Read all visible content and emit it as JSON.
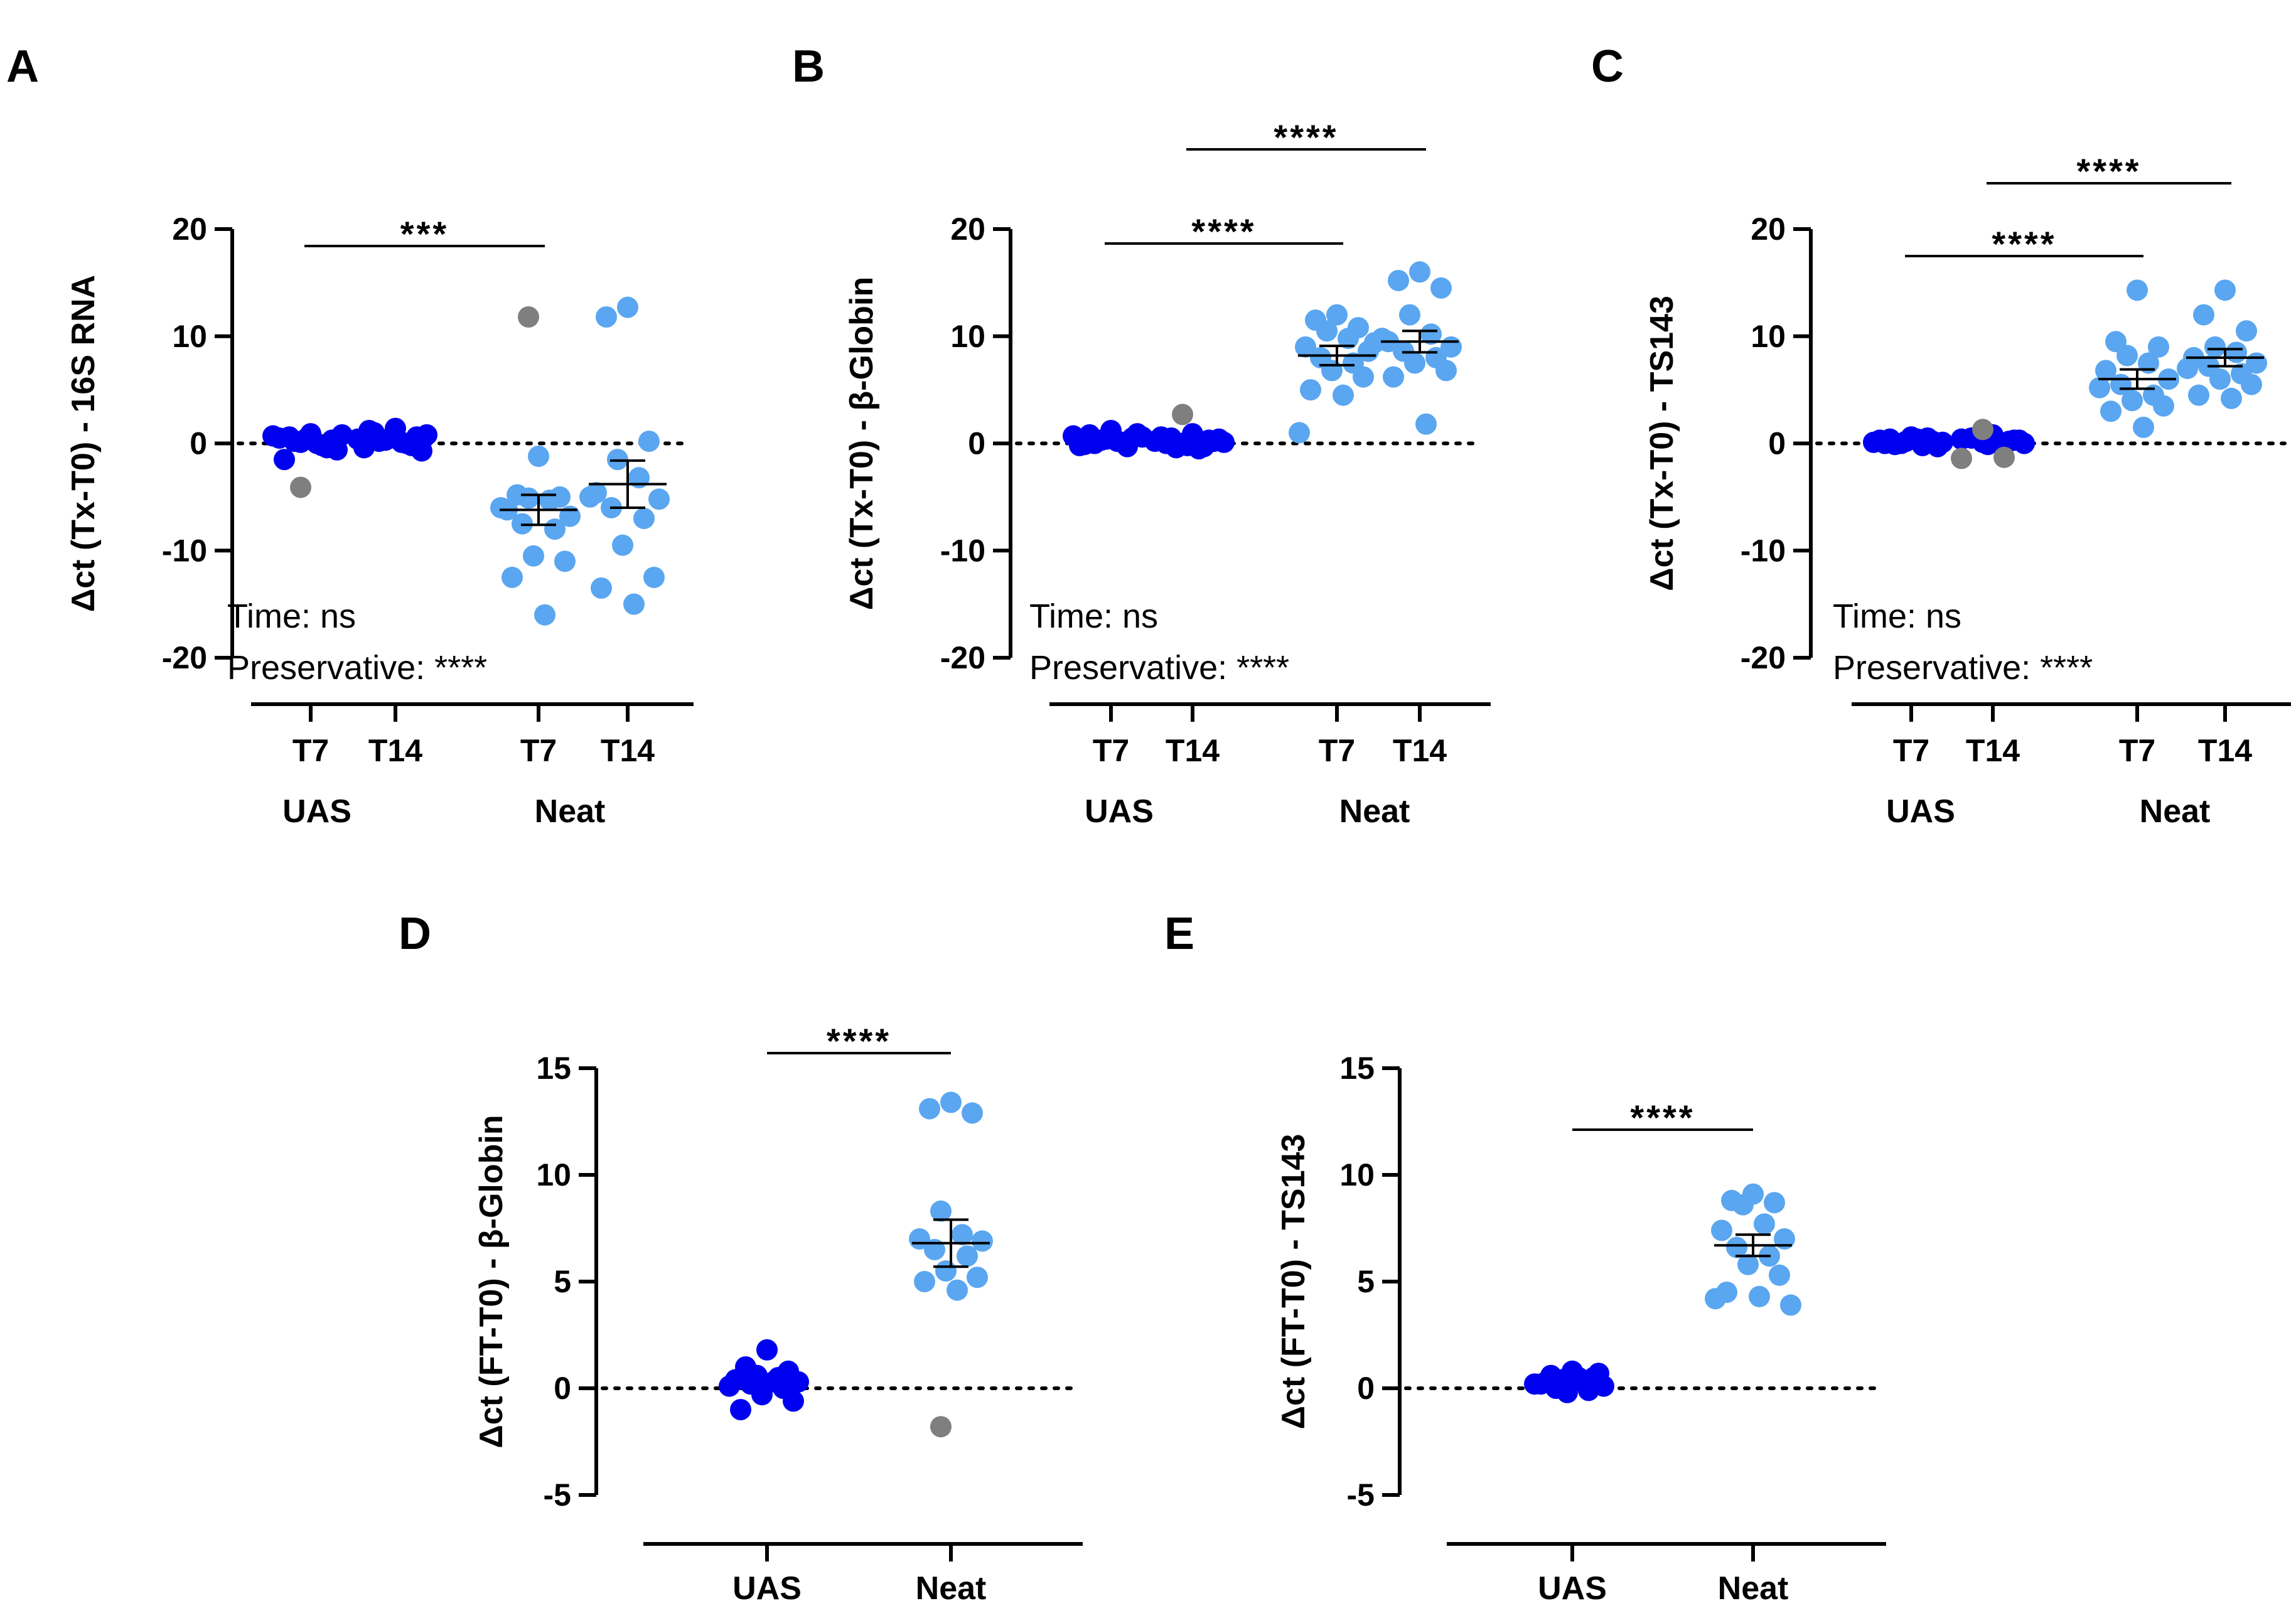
{
  "colors": {
    "uas": "#0000f0",
    "neat": "#5aa6f0",
    "outlier": "#7f7f7f",
    "axis": "#000000"
  },
  "chart_data": [
    {
      "id": "A",
      "panel_label": "A",
      "type": "scatter",
      "ylabel": "Δct (Tx-T0) - 16S RNA",
      "ylim": [
        -20,
        20
      ],
      "yticks": [
        {
          "value": 20,
          "label": "20"
        },
        {
          "value": 10,
          "label": "10"
        },
        {
          "value": 0,
          "label": "0"
        },
        {
          "value": -10,
          "label": "-10"
        },
        {
          "value": -20,
          "label": "-20"
        }
      ],
      "reference_line": 0,
      "groups": [
        {
          "name": "UAS",
          "categories": [
            "T7",
            "T14"
          ]
        },
        {
          "name": "Neat",
          "categories": [
            "T7",
            "T14"
          ]
        }
      ],
      "series": [
        {
          "group": "UAS",
          "category": "T7",
          "color_key": "uas",
          "mean": null,
          "error": null,
          "values": [
            0.9,
            0.6,
            0.3,
            0.1,
            -0.2,
            0.5,
            0.8,
            0.2,
            -0.4,
            0.4,
            -0.6,
            -1.5,
            0.0,
            0.7
          ],
          "outliers": [
            -4.1
          ]
        },
        {
          "group": "UAS",
          "category": "T14",
          "color_key": "uas",
          "mean": null,
          "error": null,
          "values": [
            1.4,
            1.0,
            0.6,
            0.3,
            0.0,
            -0.4,
            0.8,
            0.2,
            -0.2,
            0.5,
            -0.7,
            1.2,
            0.1,
            0.4
          ],
          "outliers": []
        },
        {
          "group": "Neat",
          "category": "T7",
          "color_key": "neat",
          "mean": -6.2,
          "error": 1.4,
          "values": [
            -1.2,
            -4.8,
            -5.0,
            -5.1,
            -5.3,
            -6.2,
            -6.8,
            -7.5,
            -8.0,
            -10.5,
            -11.0,
            -12.5,
            -16.0,
            -6.0
          ],
          "outliers": [
            11.8
          ]
        },
        {
          "group": "Neat",
          "category": "T14",
          "color_key": "neat",
          "mean": -3.8,
          "error": 2.2,
          "values": [
            12.7,
            11.8,
            0.2,
            -1.5,
            -3.2,
            -4.6,
            -5.2,
            -6.0,
            -7.0,
            -9.5,
            -12.5,
            -13.5,
            -15.0,
            -5.0
          ],
          "outliers": []
        }
      ],
      "significance": [
        {
          "from": "UAS T7",
          "to": "Neat T7",
          "label": "***"
        }
      ],
      "annotations": {
        "time": "Time: ns",
        "preservative": "Preservative: ****"
      }
    },
    {
      "id": "B",
      "panel_label": "B",
      "type": "scatter",
      "ylabel": "Δct (Tx-T0) - β-Globin",
      "ylim": [
        -20,
        20
      ],
      "yticks": [
        {
          "value": 20,
          "label": "20"
        },
        {
          "value": 10,
          "label": "10"
        },
        {
          "value": 0,
          "label": "0"
        },
        {
          "value": -10,
          "label": "-10"
        },
        {
          "value": -20,
          "label": "-20"
        }
      ],
      "reference_line": 0,
      "groups": [
        {
          "name": "UAS",
          "categories": [
            "T7",
            "T14"
          ]
        },
        {
          "name": "Neat",
          "categories": [
            "T7",
            "T14"
          ]
        }
      ],
      "series": [
        {
          "group": "UAS",
          "category": "T7",
          "color_key": "uas",
          "mean": null,
          "error": null,
          "values": [
            1.2,
            0.8,
            0.5,
            0.3,
            0.1,
            -0.2,
            0.6,
            0.0,
            -0.3,
            0.4,
            0.9,
            -0.1,
            0.2,
            0.7
          ],
          "outliers": []
        },
        {
          "group": "UAS",
          "category": "T14",
          "color_key": "uas",
          "mean": null,
          "error": null,
          "values": [
            0.9,
            0.5,
            0.2,
            0.0,
            -0.3,
            0.6,
            0.1,
            -0.4,
            0.3,
            -0.2,
            0.4,
            0.0,
            -0.5,
            0.2
          ],
          "outliers": [
            2.7
          ]
        },
        {
          "group": "Neat",
          "category": "T7",
          "color_key": "neat",
          "mean": 8.2,
          "error": 0.9,
          "values": [
            12.0,
            11.5,
            10.8,
            10.5,
            9.8,
            9.0,
            8.6,
            8.0,
            7.5,
            6.8,
            6.2,
            5.0,
            4.5,
            1.0,
            9.4
          ],
          "outliers": []
        },
        {
          "group": "Neat",
          "category": "T14",
          "color_key": "neat",
          "mean": 9.5,
          "error": 1.0,
          "values": [
            16.0,
            15.2,
            14.5,
            12.0,
            10.2,
            9.5,
            9.0,
            8.6,
            8.0,
            7.5,
            6.8,
            6.2,
            1.8,
            9.8
          ],
          "outliers": []
        }
      ],
      "significance": [
        {
          "from": "UAS T7",
          "to": "Neat T7",
          "label": "****"
        },
        {
          "from": "UAS T14",
          "to": "Neat T14",
          "label": "****"
        }
      ],
      "annotations": {
        "time": "Time: ns",
        "preservative": "Preservative: ****"
      }
    },
    {
      "id": "C",
      "panel_label": "C",
      "type": "scatter",
      "ylabel": "Δct (Tx-T0) - TS143",
      "ylim": [
        -20,
        20
      ],
      "yticks": [
        {
          "value": 20,
          "label": "20"
        },
        {
          "value": 10,
          "label": "10"
        },
        {
          "value": 0,
          "label": "0"
        },
        {
          "value": -10,
          "label": "-10"
        },
        {
          "value": -20,
          "label": "-20"
        }
      ],
      "reference_line": 0,
      "groups": [
        {
          "name": "UAS",
          "categories": [
            "T7",
            "T14"
          ]
        },
        {
          "name": "Neat",
          "categories": [
            "T7",
            "T14"
          ]
        }
      ],
      "series": [
        {
          "group": "UAS",
          "category": "T7",
          "color_key": "uas",
          "mean": null,
          "error": null,
          "values": [
            0.6,
            0.4,
            0.2,
            0.0,
            -0.2,
            0.3,
            0.1,
            -0.1,
            0.5,
            0.2,
            -0.3,
            0.0,
            0.4,
            0.1
          ],
          "outliers": []
        },
        {
          "group": "UAS",
          "category": "T14",
          "color_key": "uas",
          "mean": null,
          "error": null,
          "values": [
            0.8,
            0.5,
            0.3,
            0.1,
            -0.2,
            0.4,
            0.0,
            0.6,
            0.2,
            -0.1,
            0.3
          ],
          "outliers": [
            1.3,
            -1.3,
            -1.4
          ]
        },
        {
          "group": "Neat",
          "category": "T7",
          "color_key": "neat",
          "mean": 6.0,
          "error": 0.9,
          "values": [
            14.3,
            9.5,
            9.0,
            8.2,
            7.5,
            6.8,
            6.0,
            5.5,
            4.5,
            4.0,
            3.5,
            3.0,
            1.5,
            5.2
          ],
          "outliers": []
        },
        {
          "group": "Neat",
          "category": "T14",
          "color_key": "neat",
          "mean": 8.0,
          "error": 0.8,
          "values": [
            14.3,
            12.0,
            10.5,
            9.0,
            8.5,
            8.0,
            7.5,
            7.2,
            6.5,
            6.0,
            5.5,
            4.5,
            4.2,
            7.0
          ],
          "outliers": []
        }
      ],
      "significance": [
        {
          "from": "UAS T7",
          "to": "Neat T7",
          "label": "****"
        },
        {
          "from": "UAS T14",
          "to": "Neat T14",
          "label": "****"
        }
      ],
      "annotations": {
        "time": "Time: ns",
        "preservative": "Preservative: ****"
      }
    },
    {
      "id": "D",
      "panel_label": "D",
      "type": "scatter",
      "ylabel": "Δct (FT-T0) - β-Globin",
      "ylim": [
        -5,
        15
      ],
      "yticks": [
        {
          "value": 15,
          "label": "15"
        },
        {
          "value": 10,
          "label": "10"
        },
        {
          "value": 5,
          "label": "5"
        },
        {
          "value": 0,
          "label": "0"
        },
        {
          "value": -5,
          "label": "-5"
        }
      ],
      "reference_line": 0,
      "groups": [
        {
          "name": "UAS",
          "categories": []
        },
        {
          "name": "Neat",
          "categories": []
        }
      ],
      "series": [
        {
          "group": "UAS",
          "category": "",
          "color_key": "uas",
          "mean": null,
          "error": null,
          "values": [
            1.8,
            1.0,
            0.8,
            0.6,
            0.5,
            0.4,
            0.3,
            0.2,
            0.0,
            -0.3,
            -0.6,
            -1.0,
            0.3,
            0.1
          ],
          "outliers": []
        },
        {
          "group": "Neat",
          "category": "",
          "color_key": "neat",
          "mean": 6.8,
          "error": 1.1,
          "values": [
            13.4,
            13.1,
            12.9,
            8.3,
            7.2,
            7.0,
            6.9,
            6.5,
            6.2,
            5.5,
            5.2,
            5.0,
            4.6
          ],
          "outliers": [
            -1.8
          ]
        }
      ],
      "significance": [
        {
          "from": "UAS",
          "to": "Neat",
          "label": "****"
        }
      ],
      "annotations": null
    },
    {
      "id": "E",
      "panel_label": "E",
      "type": "scatter",
      "ylabel": "Δct (FT-T0) - TS143",
      "ylim": [
        -5,
        15
      ],
      "yticks": [
        {
          "value": 15,
          "label": "15"
        },
        {
          "value": 10,
          "label": "10"
        },
        {
          "value": 5,
          "label": "5"
        },
        {
          "value": 0,
          "label": "0"
        },
        {
          "value": -5,
          "label": "-5"
        }
      ],
      "reference_line": 0,
      "groups": [
        {
          "name": "UAS",
          "categories": []
        },
        {
          "name": "Neat",
          "categories": []
        }
      ],
      "series": [
        {
          "group": "UAS",
          "category": "",
          "color_key": "uas",
          "mean": null,
          "error": null,
          "values": [
            0.8,
            0.6,
            0.5,
            0.4,
            0.3,
            0.2,
            0.1,
            0.0,
            -0.1,
            -0.2,
            0.7,
            0.3,
            0.5,
            0.2
          ],
          "outliers": []
        },
        {
          "group": "Neat",
          "category": "",
          "color_key": "neat",
          "mean": 6.7,
          "error": 0.5,
          "values": [
            9.1,
            8.8,
            8.7,
            8.6,
            7.7,
            7.4,
            7.0,
            6.6,
            6.2,
            5.8,
            5.3,
            4.5,
            4.3,
            4.2,
            3.9
          ],
          "outliers": []
        }
      ],
      "significance": [
        {
          "from": "UAS",
          "to": "Neat",
          "label": "****"
        }
      ],
      "annotations": null
    }
  ]
}
